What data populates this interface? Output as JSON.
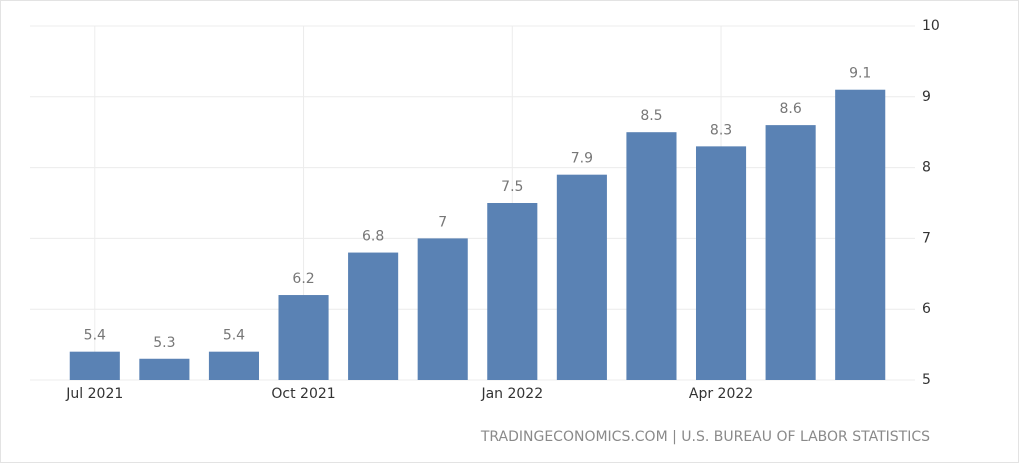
{
  "chart_data": {
    "type": "bar",
    "categories": [
      "Jul 2021",
      null,
      null,
      "Oct 2021",
      null,
      null,
      "Jan 2022",
      null,
      null,
      "Apr 2022",
      null,
      null
    ],
    "values": [
      5.4,
      5.3,
      5.4,
      6.2,
      6.8,
      7,
      7.5,
      7.9,
      8.5,
      8.3,
      8.6,
      9.1
    ],
    "color": "#5a82b4",
    "ylim": [
      5,
      10
    ],
    "yticks": [
      5,
      6,
      7,
      8,
      9,
      10
    ],
    "grid": true,
    "y_axis_side": "right",
    "source": "TRADINGECONOMICS.COM | U.S. BUREAU OF LABOR STATISTICS"
  }
}
